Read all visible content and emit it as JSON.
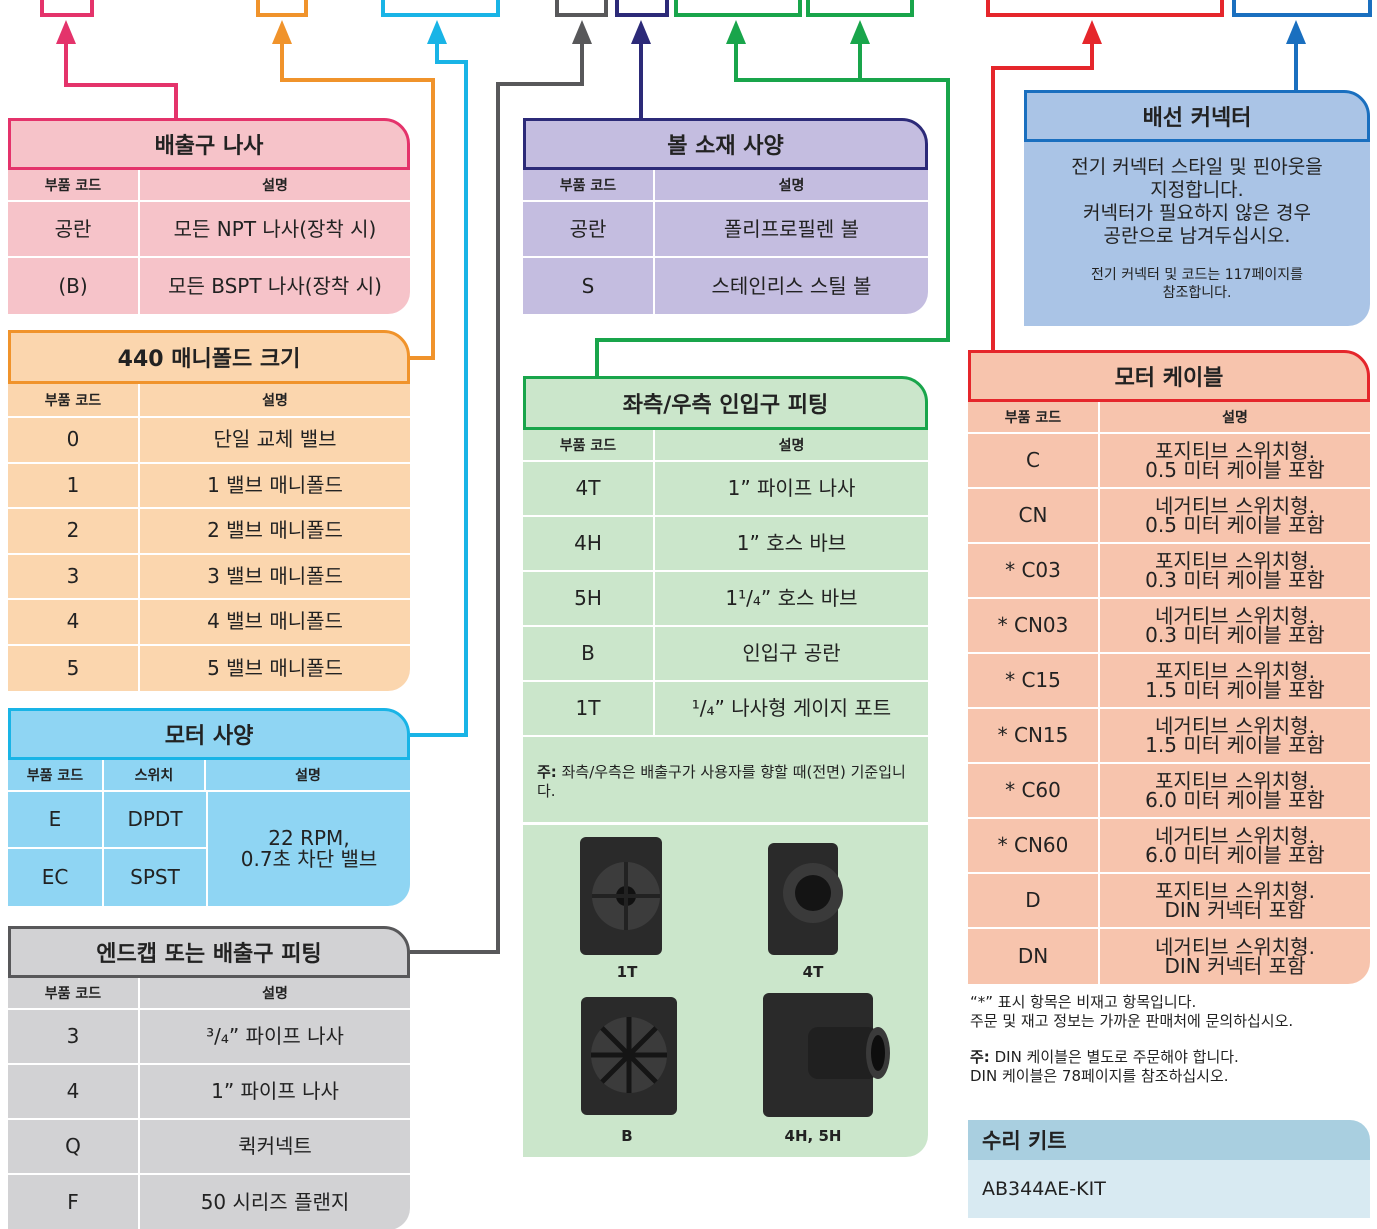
{
  "outlet_thread": {
    "title": "배출구 나사",
    "headers": [
      "부품 코드",
      "설명"
    ],
    "rows": [
      [
        "공란",
        "모든 NPT 나사(장착 시)"
      ],
      [
        "(B)",
        "모든 BSPT 나사(장착 시)"
      ]
    ]
  },
  "manifold_size": {
    "title": "440 매니폴드 크기",
    "headers": [
      "부품 코드",
      "설명"
    ],
    "rows": [
      [
        "0",
        "단일 교체 밸브"
      ],
      [
        "1",
        "1 밸브 매니폴드"
      ],
      [
        "2",
        "2 밸브 매니폴드"
      ],
      [
        "3",
        "3 밸브 매니폴드"
      ],
      [
        "4",
        "4 밸브 매니폴드"
      ],
      [
        "5",
        "5 밸브 매니폴드"
      ]
    ]
  },
  "motor_spec": {
    "title": "모터 사양",
    "headers": [
      "부품 코드",
      "스위치",
      "설명"
    ],
    "rows": [
      [
        "E",
        "DPDT"
      ],
      [
        "EC",
        "SPST"
      ]
    ],
    "shared_description": "22 RPM,\n0.7초 차단 밸브"
  },
  "endcap": {
    "title": "엔드캡 또는 배출구 피팅",
    "headers": [
      "부품 코드",
      "설명"
    ],
    "rows": [
      [
        "3",
        "³/₄” 파이프 나사"
      ],
      [
        "4",
        "1” 파이프 나사"
      ],
      [
        "Q",
        "퀵커넥트"
      ],
      [
        "F",
        "50 시리즈 플랜지"
      ]
    ]
  },
  "ball_material": {
    "title": "볼 소재 사양",
    "headers": [
      "부품 코드",
      "설명"
    ],
    "rows": [
      [
        "공란",
        "폴리프로필렌 볼"
      ],
      [
        "S",
        "스테인리스 스틸 볼"
      ]
    ]
  },
  "inlet_fitting": {
    "title": "좌측/우측 인입구 피팅",
    "headers": [
      "부품 코드",
      "설명"
    ],
    "rows": [
      [
        "4T",
        "1” 파이프 나사"
      ],
      [
        "4H",
        "1” 호스 바브"
      ],
      [
        "5H",
        "1¹/₄” 호스 바브"
      ],
      [
        "B",
        "인입구 공란"
      ],
      [
        "1T",
        "¹/₄” 나사형 게이지 포트"
      ]
    ],
    "note": {
      "label": "주:",
      "text": "좌측/우측은 배출구가 사용자를 향할 때(전면) 기준입니다."
    },
    "images": [
      "1T",
      "4T",
      "B",
      "4H, 5H"
    ]
  },
  "wiring_connector": {
    "title": "배선 커넥터",
    "text": "전기 커넥터 스타일 및 핀아웃을\n지정합니다.\n커넥터가 필요하지 않은 경우\n공란으로 남겨두십시오.",
    "reference": "전기 커넥터 및 코드는 117페이지를\n참조합니다."
  },
  "motor_cable": {
    "title": "모터 케이블",
    "headers": [
      "부품 코드",
      "설명"
    ],
    "rows": [
      [
        "C",
        "포지티브 스위치형.\n0.5 미터 케이블 포함"
      ],
      [
        "CN",
        "네거티브 스위치형.\n0.5 미터 케이블 포함"
      ],
      [
        "* C03",
        "포지티브 스위치형.\n0.3 미터 케이블 포함"
      ],
      [
        "* CN03",
        "네거티브 스위치형.\n0.3 미터 케이블 포함"
      ],
      [
        "* C15",
        "포지티브 스위치형.\n1.5 미터 케이블 포함"
      ],
      [
        "* CN15",
        "네거티브 스위치형.\n1.5 미터 케이블 포함"
      ],
      [
        "* C60",
        "포지티브 스위치형.\n6.0 미터 케이블 포함"
      ],
      [
        "* CN60",
        "네거티브 스위치형.\n6.0 미터 케이블 포함"
      ],
      [
        "D",
        "포지티브 스위치형.\nDIN 커넥터 포함"
      ],
      [
        "DN",
        "네거티브 스위치형.\nDIN 커넥터 포함"
      ]
    ]
  },
  "footnote": "“*” 표시 항목은 비재고 항목입니다.\n주문 및 재고 정보는 가까운 판매처에 문의하십시오.",
  "cable_note": {
    "label": "주:",
    "text": "DIN 케이블은 별도로 주문해야 합니다.\nDIN 케이블은 78페이지를 참조하십시오."
  },
  "repair_kit": {
    "title": "수리 키트",
    "part": "AB344AE-KIT"
  }
}
